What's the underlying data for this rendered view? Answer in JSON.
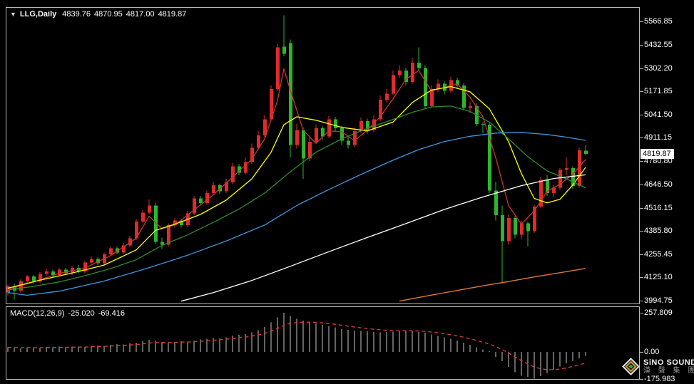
{
  "window": {
    "background": "#000000",
    "pane_border": "#b9b9b9"
  },
  "quote_bar": {
    "dropdown_icon": "▼",
    "symbol_period": "LLG,Daily",
    "open": "4839.76",
    "high": "4870.95",
    "low": "4817.00",
    "close": "4819.87"
  },
  "price_axis": {
    "current_price_label": "4819.87",
    "text_color": "#ffffff",
    "badge_bg": "#ffffff",
    "badge_text": "#000000"
  },
  "macd_panel": {
    "label": "MACD(12,26,9)",
    "main_value": "-25.020",
    "signal_value": "-69.416"
  },
  "logo": {
    "line1": "SiNO SOUND",
    "line2": "漢 聲 集 團"
  },
  "chart_data": {
    "type": "candlestick",
    "symbol": "LLG",
    "timeframe": "Daily",
    "last_quote": {
      "open": 4839.76,
      "high": 4870.95,
      "low": 4817.0,
      "close": 4819.87
    },
    "price_axis": {
      "min": 3994.75,
      "max": 5566.85,
      "ticks": [
        5566.85,
        5432.55,
        5302.2,
        5171.85,
        5041.5,
        4911.15,
        4780.8,
        4646.5,
        4516.15,
        4385.8,
        4255.45,
        4125.1,
        3994.75
      ],
      "current_price": 4819.87,
      "grid": false
    },
    "colors": {
      "bull_red": "#df2b2b",
      "bear_green": "#2eb52e",
      "ma_red": "#c93434",
      "ma_yellow": "#ffff00",
      "ma_green": "#2e8b2e",
      "ma_blue": "#3c96dc",
      "ma_white": "#ffffff",
      "ma_orange": "#e0793b",
      "macd_hist": "#c9c9c9",
      "macd_signal": "#e23b3b"
    },
    "color_rule": "red candle = close > open (bullish), green candle = close < open (bearish)",
    "candles": [
      [
        4040,
        4085,
        4025,
        4075
      ],
      [
        4075,
        4090,
        4000,
        4050
      ],
      [
        4050,
        4115,
        4040,
        4105
      ],
      [
        4105,
        4140,
        4095,
        4130
      ],
      [
        4130,
        4140,
        4090,
        4105
      ],
      [
        4105,
        4155,
        4095,
        4145
      ],
      [
        4145,
        4175,
        4135,
        4160
      ],
      [
        4160,
        4170,
        4125,
        4140
      ],
      [
        4140,
        4180,
        4130,
        4170
      ],
      [
        4170,
        4180,
        4140,
        4150
      ],
      [
        4150,
        4190,
        4140,
        4180
      ],
      [
        4180,
        4195,
        4150,
        4160
      ],
      [
        4160,
        4220,
        4150,
        4210
      ],
      [
        4210,
        4245,
        4200,
        4230
      ],
      [
        4230,
        4240,
        4195,
        4205
      ],
      [
        4205,
        4265,
        4195,
        4255
      ],
      [
        4255,
        4300,
        4245,
        4290
      ],
      [
        4290,
        4300,
        4255,
        4265
      ],
      [
        4265,
        4320,
        4255,
        4305
      ],
      [
        4305,
        4360,
        4295,
        4345
      ],
      [
        4345,
        4455,
        4335,
        4440
      ],
      [
        4440,
        4505,
        4430,
        4490
      ],
      [
        4490,
        4565,
        4480,
        4530
      ],
      [
        4530,
        4545,
        4315,
        4325
      ],
      [
        4325,
        4350,
        4285,
        4310
      ],
      [
        4310,
        4430,
        4300,
        4420
      ],
      [
        4420,
        4460,
        4405,
        4445
      ],
      [
        4445,
        4455,
        4405,
        4420
      ],
      [
        4420,
        4500,
        4410,
        4485
      ],
      [
        4485,
        4585,
        4475,
        4570
      ],
      [
        4570,
        4585,
        4530,
        4545
      ],
      [
        4545,
        4615,
        4535,
        4600
      ],
      [
        4600,
        4665,
        4590,
        4645
      ],
      [
        4645,
        4655,
        4595,
        4610
      ],
      [
        4610,
        4680,
        4600,
        4660
      ],
      [
        4660,
        4770,
        4650,
        4750
      ],
      [
        4750,
        4765,
        4700,
        4715
      ],
      [
        4715,
        4800,
        4705,
        4775
      ],
      [
        4775,
        4880,
        4765,
        4855
      ],
      [
        4855,
        4950,
        4845,
        4925
      ],
      [
        4925,
        5040,
        4915,
        5015
      ],
      [
        5015,
        5205,
        5005,
        5185
      ],
      [
        5185,
        5440,
        5175,
        5420
      ],
      [
        5425,
        5600,
        5370,
        5385
      ],
      [
        5445,
        5465,
        4800,
        4870
      ],
      [
        4870,
        4990,
        4850,
        4955
      ],
      [
        4955,
        4970,
        4680,
        4795
      ],
      [
        4795,
        4915,
        4780,
        4890
      ],
      [
        4890,
        4985,
        4875,
        4965
      ],
      [
        4965,
        4980,
        4900,
        4920
      ],
      [
        4920,
        5035,
        4910,
        5015
      ],
      [
        5015,
        5030,
        4945,
        4965
      ],
      [
        4965,
        4980,
        4870,
        4895
      ],
      [
        4895,
        4920,
        4850,
        4870
      ],
      [
        4870,
        4970,
        4860,
        4950
      ],
      [
        4950,
        5025,
        4940,
        5005
      ],
      [
        5005,
        5020,
        4935,
        4955
      ],
      [
        4955,
        5040,
        4945,
        5015
      ],
      [
        5015,
        5150,
        5005,
        5125
      ],
      [
        5125,
        5185,
        5110,
        5160
      ],
      [
        5160,
        5290,
        5150,
        5265
      ],
      [
        5265,
        5320,
        5250,
        5290
      ],
      [
        5290,
        5305,
        5205,
        5225
      ],
      [
        5225,
        5360,
        5215,
        5335
      ],
      [
        5335,
        5420,
        5290,
        5305
      ],
      [
        5305,
        5320,
        5075,
        5090
      ],
      [
        5090,
        5205,
        5080,
        5185
      ],
      [
        5185,
        5240,
        5170,
        5215
      ],
      [
        5215,
        5230,
        5155,
        5175
      ],
      [
        5175,
        5255,
        5165,
        5235
      ],
      [
        5235,
        5250,
        5185,
        5205
      ],
      [
        5205,
        5220,
        5065,
        5080
      ],
      [
        5080,
        5115,
        5050,
        5090
      ],
      [
        5090,
        5105,
        4975,
        4990
      ],
      [
        4990,
        5000,
        4940,
        4985
      ],
      [
        4985,
        4995,
        4600,
        4615
      ],
      [
        4615,
        4665,
        4445,
        4475
      ],
      [
        4475,
        4530,
        4090,
        4330
      ],
      [
        4330,
        4480,
        4310,
        4460
      ],
      [
        4460,
        4470,
        4345,
        4365
      ],
      [
        4365,
        4445,
        4340,
        4430
      ],
      [
        4430,
        4440,
        4300,
        4385
      ],
      [
        4385,
        4535,
        4375,
        4525
      ],
      [
        4525,
        4690,
        4515,
        4675
      ],
      [
        4675,
        4700,
        4585,
        4600
      ],
      [
        4600,
        4645,
        4580,
        4630
      ],
      [
        4630,
        4740,
        4620,
        4730
      ],
      [
        4730,
        4800,
        4700,
        4740
      ],
      [
        4740,
        4750,
        4625,
        4640
      ],
      [
        4640,
        4855,
        4630,
        4840
      ],
      [
        4839.76,
        4870.95,
        4817.0,
        4819.87
      ]
    ],
    "moving_averages": [
      {
        "name": "ma-fast-red",
        "color": "#c93434",
        "points": [
          [
            0,
            4058
          ],
          [
            4,
            4100
          ],
          [
            8,
            4148
          ],
          [
            12,
            4178
          ],
          [
            16,
            4248
          ],
          [
            20,
            4345
          ],
          [
            22,
            4470
          ],
          [
            24,
            4400
          ],
          [
            26,
            4420
          ],
          [
            29,
            4505
          ],
          [
            32,
            4590
          ],
          [
            35,
            4690
          ],
          [
            38,
            4790
          ],
          [
            40,
            4905
          ],
          [
            42,
            5120
          ],
          [
            43,
            5300
          ],
          [
            44,
            5180
          ],
          [
            46,
            4955
          ],
          [
            48,
            4880
          ],
          [
            50,
            4950
          ],
          [
            52,
            4945
          ],
          [
            54,
            4895
          ],
          [
            56,
            4955
          ],
          [
            58,
            5030
          ],
          [
            60,
            5130
          ],
          [
            62,
            5240
          ],
          [
            64,
            5290
          ],
          [
            66,
            5175
          ],
          [
            68,
            5195
          ],
          [
            70,
            5215
          ],
          [
            72,
            5140
          ],
          [
            74,
            5030
          ],
          [
            76,
            4800
          ],
          [
            78,
            4530
          ],
          [
            80,
            4425
          ],
          [
            82,
            4500
          ],
          [
            84,
            4610
          ],
          [
            86,
            4650
          ],
          [
            88,
            4705
          ],
          [
            90,
            4790
          ]
        ]
      },
      {
        "name": "ma-yellow",
        "color": "#ffff00",
        "points": [
          [
            0,
            4065
          ],
          [
            5,
            4110
          ],
          [
            10,
            4150
          ],
          [
            15,
            4195
          ],
          [
            20,
            4280
          ],
          [
            23,
            4390
          ],
          [
            26,
            4425
          ],
          [
            30,
            4480
          ],
          [
            34,
            4560
          ],
          [
            38,
            4680
          ],
          [
            41,
            4830
          ],
          [
            43,
            4985
          ],
          [
            45,
            5030
          ],
          [
            48,
            5010
          ],
          [
            52,
            4970
          ],
          [
            56,
            4950
          ],
          [
            60,
            5000
          ],
          [
            63,
            5110
          ],
          [
            66,
            5180
          ],
          [
            69,
            5200
          ],
          [
            72,
            5170
          ],
          [
            75,
            5075
          ],
          [
            78,
            4890
          ],
          [
            80,
            4710
          ],
          [
            82,
            4570
          ],
          [
            84,
            4545
          ],
          [
            86,
            4565
          ],
          [
            88,
            4645
          ],
          [
            90,
            4745
          ]
        ]
      },
      {
        "name": "ma-green",
        "color": "#2e8b2e",
        "points": [
          [
            0,
            4055
          ],
          [
            4,
            4075
          ],
          [
            8,
            4100
          ],
          [
            12,
            4135
          ],
          [
            16,
            4175
          ],
          [
            20,
            4225
          ],
          [
            24,
            4305
          ],
          [
            28,
            4365
          ],
          [
            32,
            4435
          ],
          [
            36,
            4510
          ],
          [
            40,
            4600
          ],
          [
            44,
            4720
          ],
          [
            48,
            4830
          ],
          [
            52,
            4905
          ],
          [
            56,
            4965
          ],
          [
            60,
            5015
          ],
          [
            63,
            5055
          ],
          [
            66,
            5085
          ],
          [
            69,
            5090
          ],
          [
            72,
            5060
          ],
          [
            75,
            5000
          ],
          [
            78,
            4905
          ],
          [
            81,
            4805
          ],
          [
            84,
            4725
          ],
          [
            87,
            4680
          ],
          [
            90,
            4630
          ]
        ]
      },
      {
        "name": "ma-blue",
        "color": "#3c96dc",
        "points": [
          [
            0,
            4040
          ],
          [
            3,
            4025
          ],
          [
            8,
            4048
          ],
          [
            15,
            4105
          ],
          [
            22,
            4180
          ],
          [
            28,
            4250
          ],
          [
            34,
            4330
          ],
          [
            40,
            4420
          ],
          [
            45,
            4530
          ],
          [
            50,
            4620
          ],
          [
            55,
            4705
          ],
          [
            60,
            4785
          ],
          [
            64,
            4845
          ],
          [
            68,
            4890
          ],
          [
            72,
            4920
          ],
          [
            76,
            4938
          ],
          [
            80,
            4942
          ],
          [
            84,
            4930
          ],
          [
            87,
            4915
          ],
          [
            90,
            4897
          ]
        ]
      },
      {
        "name": "ma-white",
        "color": "#ffffff",
        "points": [
          [
            27,
            3992
          ],
          [
            32,
            4040
          ],
          [
            38,
            4108
          ],
          [
            44,
            4188
          ],
          [
            50,
            4270
          ],
          [
            56,
            4350
          ],
          [
            62,
            4428
          ],
          [
            68,
            4508
          ],
          [
            74,
            4578
          ],
          [
            80,
            4642
          ],
          [
            85,
            4682
          ],
          [
            90,
            4703
          ]
        ]
      },
      {
        "name": "ma-orange",
        "color": "#e0793b",
        "points": [
          [
            61,
            3992
          ],
          [
            66,
            4026
          ],
          [
            70,
            4052
          ],
          [
            74,
            4078
          ],
          [
            78,
            4102
          ],
          [
            82,
            4128
          ],
          [
            86,
            4152
          ],
          [
            90,
            4176
          ]
        ]
      }
    ],
    "macd": {
      "label": "MACD(12,26,9)",
      "main": -25.02,
      "signal": -69.416,
      "axis_ticks": [
        {
          "v": 257.809,
          "label": "257.809"
        },
        {
          "v": 0,
          "label": "0.00"
        },
        {
          "v": -175.983,
          "label": "-175.983"
        }
      ],
      "axis_max": 257.809,
      "axis_min": -175.983,
      "signal_ema_period": 9,
      "histogram": [
        30,
        26,
        24,
        27,
        30,
        27,
        32,
        30,
        34,
        31,
        36,
        34,
        33,
        39,
        43,
        41,
        46,
        51,
        49,
        56,
        62,
        72,
        80,
        74,
        66,
        61,
        66,
        71,
        69,
        74,
        82,
        87,
        92,
        90,
        97,
        107,
        112,
        118,
        128,
        143,
        163,
        195,
        228,
        257.809,
        237,
        218,
        207,
        197,
        187,
        177,
        171,
        161,
        151,
        146,
        141,
        139,
        136,
        131,
        129,
        131,
        134,
        137,
        140,
        136,
        131,
        126,
        116,
        106,
        96,
        86,
        76,
        61,
        46,
        31,
        16,
        5,
        -32,
        -62,
        -98,
        -133,
        -158,
        -165,
        -175.983,
        -160,
        -140,
        -118,
        -95,
        -75,
        -58,
        -42,
        -25.02
      ]
    }
  }
}
